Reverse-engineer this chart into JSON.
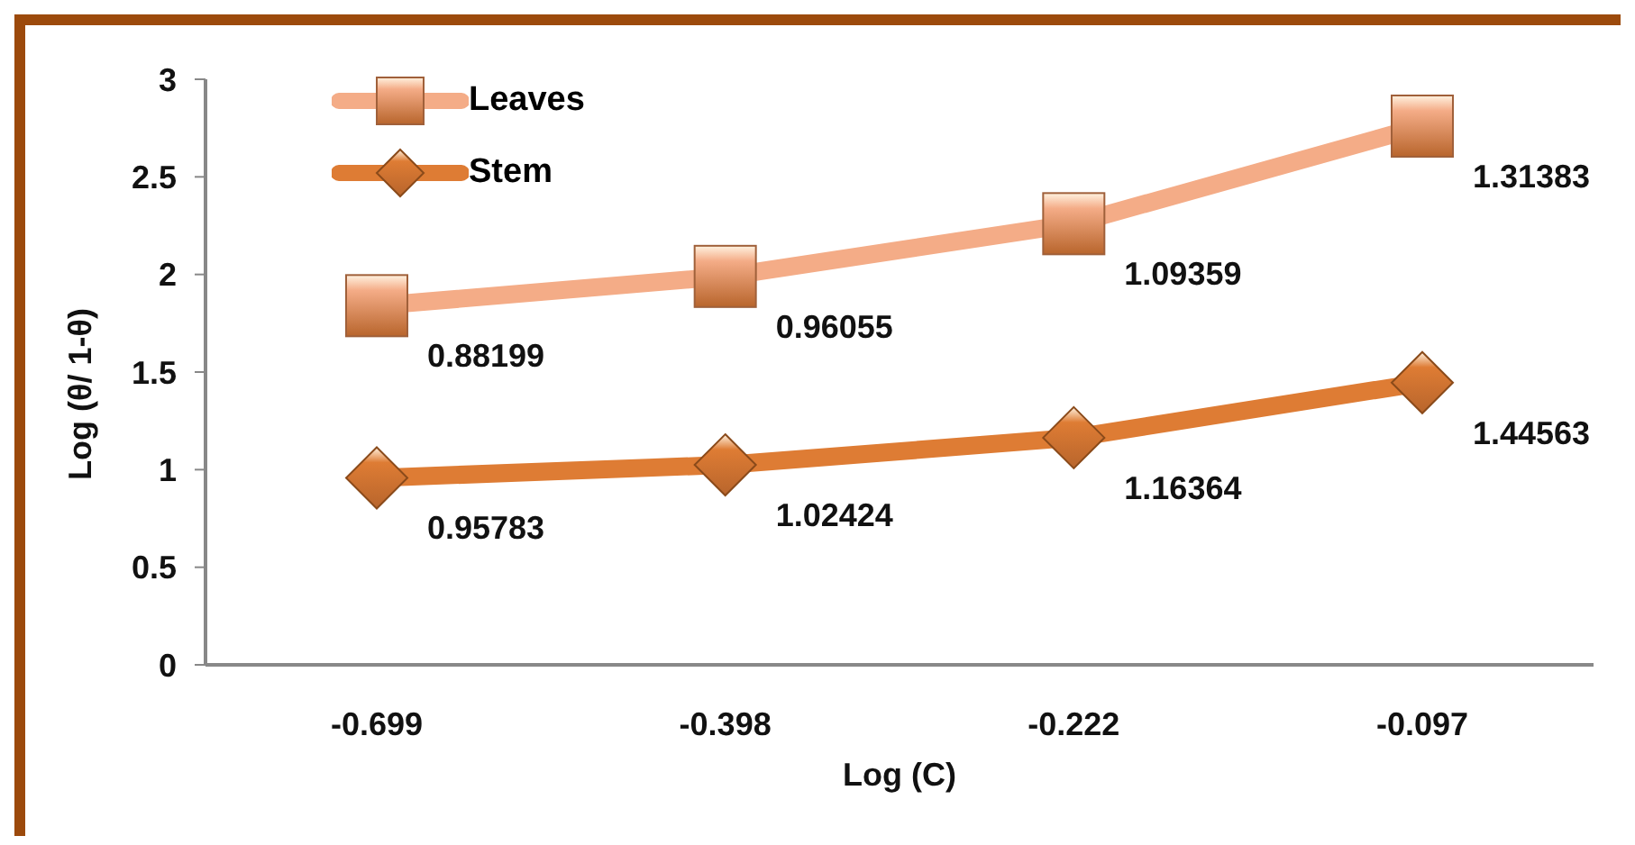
{
  "chart_data": {
    "type": "line",
    "xlabel": "Log (C)",
    "ylabel": "Log (θ/ 1-θ)",
    "categories": [
      "-0.699",
      "-0.398",
      "-0.222",
      "-0.097"
    ],
    "ylim": [
      0,
      3
    ],
    "yticks": [
      0,
      0.5,
      1,
      1.5,
      2,
      2.5,
      3
    ],
    "grid": false,
    "legend": "top left",
    "series": [
      {
        "name": "Leaves",
        "color": "#f4ac87",
        "marker": "square",
        "values": [
          1.84,
          1.99,
          2.26,
          2.76
        ]
      },
      {
        "name": "Stem",
        "color": "#de7c34",
        "marker": "diamond",
        "values": [
          0.95783,
          1.02424,
          1.16364,
          1.44563
        ],
        "value_labels": [
          "0.95783",
          "1.02424",
          "1.16364",
          "1.44563"
        ]
      }
    ],
    "annotations": [
      {
        "text": "0.88199",
        "x": "-0.699",
        "y": 1.84
      },
      {
        "text": "0.96055",
        "x": "-0.398",
        "y": 1.99
      },
      {
        "text": "1.09359",
        "x": "-0.222",
        "y": 2.26
      },
      {
        "text": "1.31383",
        "x": "-0.097",
        "y": 2.76
      }
    ]
  }
}
